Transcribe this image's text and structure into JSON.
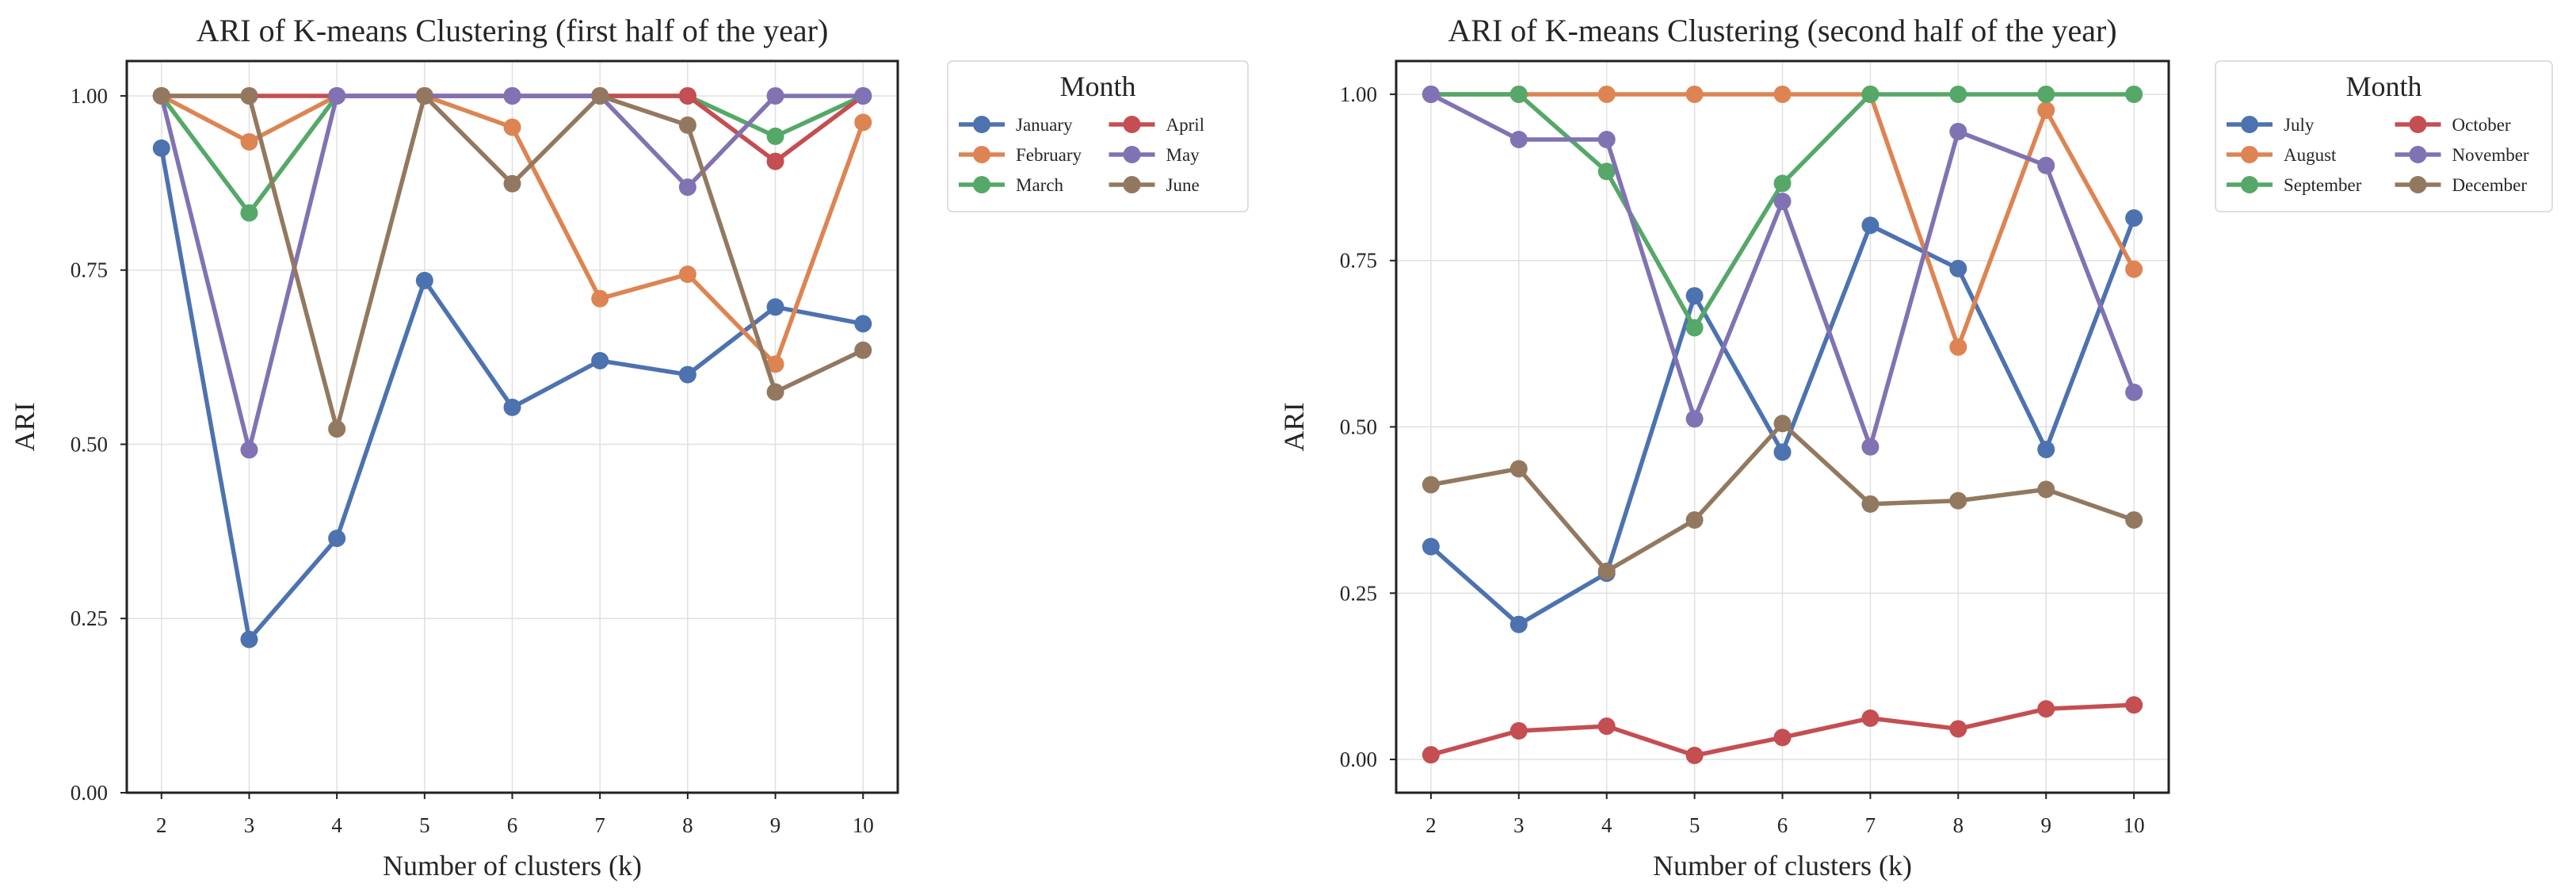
{
  "chart_data": [
    {
      "type": "line",
      "title": "ARI of K-means Clustering (first half of the year)",
      "xlabel": "Number of clusters (k)",
      "ylabel": "ARI",
      "x": [
        2,
        3,
        4,
        5,
        6,
        7,
        8,
        9,
        10
      ],
      "x_tick_labels": [
        "2",
        "3",
        "4",
        "5",
        "6",
        "7",
        "8",
        "9",
        "10"
      ],
      "ylim": [
        0,
        1.05
      ],
      "y_ticks": [
        0,
        0.25,
        0.5,
        0.75,
        1.0
      ],
      "y_tick_labels": [
        "0.00",
        "0.25",
        "0.50",
        "0.75",
        "1.00"
      ],
      "grid": true,
      "legend": {
        "title": "Month",
        "placement": "outside-upper-right",
        "columns": 2
      },
      "series": [
        {
          "name": "January",
          "color": "#4c72b0",
          "values": [
            0.925,
            0.22,
            0.365,
            0.735,
            0.553,
            0.62,
            0.6,
            0.697,
            0.673
          ]
        },
        {
          "name": "February",
          "color": "#dd8452",
          "values": [
            1.0,
            0.934,
            1.0,
            1.0,
            0.955,
            0.709,
            0.744,
            0.615,
            0.962
          ]
        },
        {
          "name": "March",
          "color": "#55a868",
          "values": [
            1.0,
            0.832,
            1.0,
            1.0,
            1.0,
            1.0,
            1.0,
            0.942,
            1.0
          ]
        },
        {
          "name": "April",
          "color": "#c44e52",
          "values": [
            1.0,
            1.0,
            1.0,
            1.0,
            1.0,
            1.0,
            1.0,
            0.906,
            1.0
          ]
        },
        {
          "name": "May",
          "color": "#8172b3",
          "values": [
            1.0,
            0.492,
            1.0,
            1.0,
            1.0,
            1.0,
            0.869,
            1.0,
            1.0
          ]
        },
        {
          "name": "June",
          "color": "#937860",
          "values": [
            1.0,
            1.0,
            0.522,
            1.0,
            0.874,
            1.0,
            0.958,
            0.575,
            0.635
          ]
        }
      ]
    },
    {
      "type": "line",
      "title": "ARI of K-means Clustering (second half of the year)",
      "xlabel": "Number of clusters (k)",
      "ylabel": "ARI",
      "x": [
        2,
        3,
        4,
        5,
        6,
        7,
        8,
        9,
        10
      ],
      "x_tick_labels": [
        "2",
        "3",
        "4",
        "5",
        "6",
        "7",
        "8",
        "9",
        "10"
      ],
      "ylim": [
        -0.05,
        1.05
      ],
      "y_ticks": [
        0,
        0.25,
        0.5,
        0.75,
        1.0
      ],
      "y_tick_labels": [
        "0.00",
        "0.25",
        "0.50",
        "0.75",
        "1.00"
      ],
      "grid": true,
      "legend": {
        "title": "Month",
        "placement": "outside-upper-right",
        "columns": 2
      },
      "series": [
        {
          "name": "July",
          "color": "#4c72b0",
          "values": [
            0.32,
            0.203,
            0.28,
            0.697,
            0.462,
            0.803,
            0.738,
            0.466,
            0.814
          ]
        },
        {
          "name": "August",
          "color": "#dd8452",
          "values": [
            1.0,
            1.0,
            1.0,
            1.0,
            1.0,
            1.0,
            0.62,
            0.976,
            0.737
          ]
        },
        {
          "name": "September",
          "color": "#55a868",
          "values": [
            1.0,
            1.0,
            0.884,
            0.649,
            0.866,
            1.0,
            1.0,
            1.0,
            1.0
          ]
        },
        {
          "name": "October",
          "color": "#c44e52",
          "values": [
            0.007,
            0.043,
            0.05,
            0.006,
            0.033,
            0.062,
            0.046,
            0.076,
            0.082
          ]
        },
        {
          "name": "November",
          "color": "#8172b3",
          "values": [
            1.0,
            0.932,
            0.932,
            0.512,
            0.839,
            0.47,
            0.944,
            0.893,
            0.552
          ]
        },
        {
          "name": "December",
          "color": "#937860",
          "values": [
            0.413,
            0.437,
            0.283,
            0.36,
            0.505,
            0.384,
            0.389,
            0.406,
            0.36
          ]
        }
      ]
    }
  ]
}
